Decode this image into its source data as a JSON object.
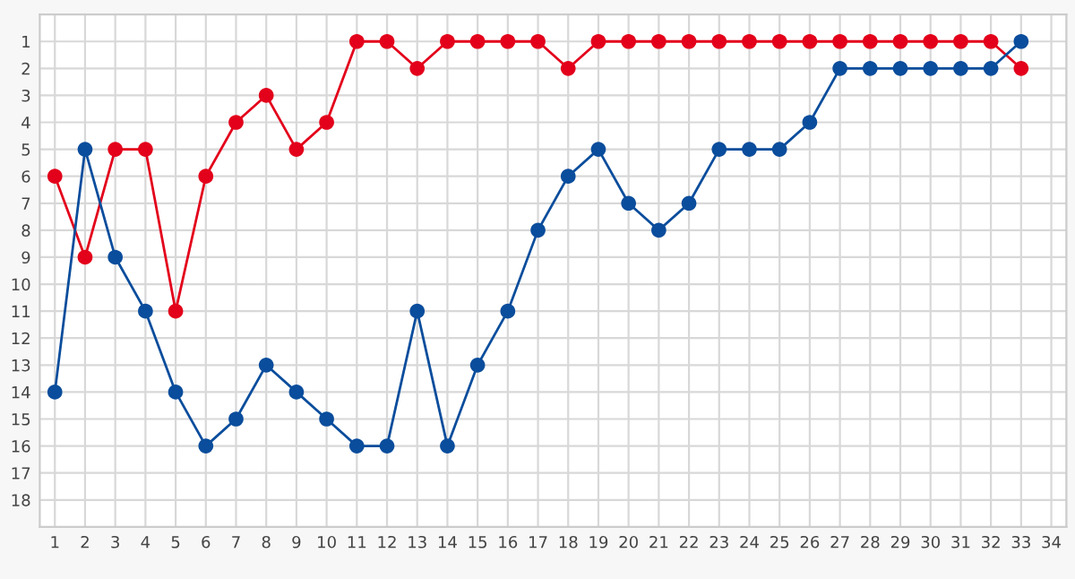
{
  "chart_data": {
    "type": "line",
    "categories": [
      "1",
      "2",
      "3",
      "4",
      "5",
      "6",
      "7",
      "8",
      "9",
      "10",
      "11",
      "12",
      "13",
      "14",
      "15",
      "16",
      "17",
      "18",
      "19",
      "20",
      "21",
      "22",
      "23",
      "24",
      "25",
      "26",
      "27",
      "28",
      "29",
      "30",
      "31",
      "32",
      "33",
      "34"
    ],
    "series": [
      {
        "color": "#e3001b",
        "values": [
          6,
          9,
          5,
          5,
          11,
          6,
          4,
          3,
          5,
          4,
          1,
          1,
          2,
          1,
          1,
          1,
          1,
          2,
          1,
          1,
          1,
          1,
          1,
          1,
          1,
          1,
          1,
          1,
          1,
          1,
          1,
          1,
          2,
          null
        ]
      },
      {
        "color": "#0a4d9c",
        "values": [
          14,
          5,
          9,
          11,
          14,
          16,
          15,
          13,
          14,
          15,
          16,
          16,
          11,
          16,
          13,
          11,
          8,
          6,
          5,
          7,
          8,
          7,
          5,
          5,
          5,
          4,
          2,
          2,
          2,
          2,
          2,
          2,
          1,
          null
        ]
      }
    ],
    "ylim": [
      19,
      0
    ],
    "yticks": [
      1,
      2,
      3,
      4,
      5,
      6,
      7,
      8,
      9,
      10,
      11,
      12,
      13,
      14,
      15,
      16,
      17,
      18
    ],
    "grid": true,
    "marker": "circle",
    "line_style": "solid",
    "legend": false
  }
}
